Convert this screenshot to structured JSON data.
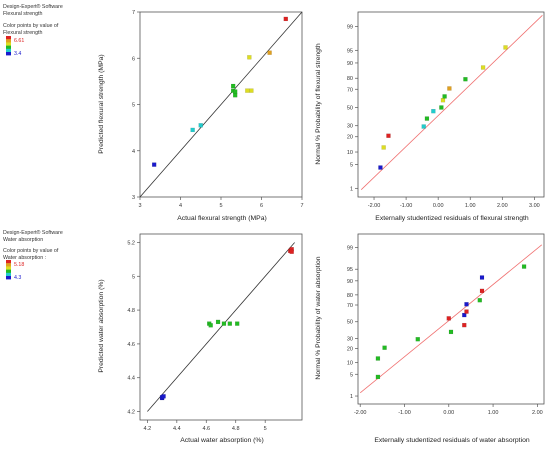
{
  "legends": [
    {
      "software": "Design-Expert® Software",
      "response": "Flexural strength",
      "color_by_line1": "Color points by value of",
      "color_by_line2": "Flexural strength",
      "max_label": "6.61",
      "min_label": "3.4",
      "colors": [
        "#dd2222",
        "#e0a020",
        "#dddd22",
        "#22bb22",
        "#22cccc",
        "#1a1acc"
      ]
    },
    {
      "software": "Design-Expert® Software",
      "response": "Water absorption",
      "color_by_line1": "Color points by value of",
      "color_by_line2": "Water absorption :",
      "max_label": "5.18",
      "min_label": "4.3",
      "colors": [
        "#dd2222",
        "#e0a020",
        "#dddd22",
        "#22bb22",
        "#22cccc",
        "#1a1acc"
      ]
    }
  ],
  "chart_data": [
    {
      "type": "scatter",
      "title": "",
      "xlabel": "Actual flexural strength (MPa)",
      "ylabel": "Predicted flexural strength (MPa)",
      "xlim": [
        3,
        7
      ],
      "ylim": [
        3,
        7
      ],
      "xticks": [
        3,
        4,
        5,
        6,
        7
      ],
      "yticks": [
        3,
        4,
        5,
        6,
        7
      ],
      "xtick_labels": [
        "3",
        "4",
        "5",
        "6",
        "7"
      ],
      "ytick_labels": [
        "3",
        "4",
        "5",
        "6",
        "7"
      ],
      "reference_line": {
        "from": [
          3,
          3
        ],
        "to": [
          7,
          7
        ],
        "color": "#333333"
      },
      "grid": false,
      "points": [
        {
          "x": 3.35,
          "y": 3.7,
          "color": "#1a1acc"
        },
        {
          "x": 4.3,
          "y": 4.45,
          "color": "#22cccc"
        },
        {
          "x": 4.5,
          "y": 4.55,
          "color": "#22cccc"
        },
        {
          "x": 5.3,
          "y": 5.4,
          "color": "#22bb22"
        },
        {
          "x": 5.3,
          "y": 5.3,
          "color": "#22bb22"
        },
        {
          "x": 5.35,
          "y": 5.2,
          "color": "#22bb22"
        },
        {
          "x": 5.35,
          "y": 5.28,
          "color": "#22bb22"
        },
        {
          "x": 5.65,
          "y": 5.3,
          "color": "#dddd22"
        },
        {
          "x": 5.75,
          "y": 5.3,
          "color": "#dddd22"
        },
        {
          "x": 5.7,
          "y": 6.02,
          "color": "#dddd22"
        },
        {
          "x": 6.2,
          "y": 6.12,
          "color": "#e0a020"
        },
        {
          "x": 6.6,
          "y": 6.85,
          "color": "#dd2222"
        }
      ]
    },
    {
      "type": "scatter",
      "title": "",
      "xlabel": "Externally studentized residuals of flexural strength",
      "ylabel": "Normal % Probability of flexural strength",
      "xlim": [
        -2.5,
        3.3
      ],
      "ylim_probability": [
        0.5,
        99.7
      ],
      "xticks": [
        -2,
        -1,
        0,
        1,
        2,
        3
      ],
      "xtick_labels": [
        "-2.00",
        "-1.00",
        "0.00",
        "1.00",
        "2.00",
        "3.00"
      ],
      "yticks": [
        1,
        5,
        10,
        20,
        30,
        50,
        70,
        80,
        90,
        95,
        99
      ],
      "ytick_labels": [
        "1",
        "5",
        "10",
        "20",
        "30",
        "50",
        "70",
        "80",
        "90",
        "95",
        "99"
      ],
      "reference_line": {
        "from": [
          -2.4,
          0.9
        ],
        "to": [
          3.25,
          99.6
        ],
        "color": "#f07070"
      },
      "grid": false,
      "points": [
        {
          "x": -1.8,
          "y": 4.2,
          "color": "#1a1acc"
        },
        {
          "x": -1.7,
          "y": 12.5,
          "color": "#dddd22"
        },
        {
          "x": -1.55,
          "y": 20.8,
          "color": "#dd2222"
        },
        {
          "x": -0.45,
          "y": 29.2,
          "color": "#22cccc"
        },
        {
          "x": -0.35,
          "y": 37.5,
          "color": "#22bb22"
        },
        {
          "x": -0.15,
          "y": 45.8,
          "color": "#22cccc"
        },
        {
          "x": 0.1,
          "y": 50.0,
          "color": "#22bb22"
        },
        {
          "x": 0.15,
          "y": 58.3,
          "color": "#dddd22"
        },
        {
          "x": 0.2,
          "y": 62.5,
          "color": "#22bb22"
        },
        {
          "x": 0.35,
          "y": 70.8,
          "color": "#e0a020"
        },
        {
          "x": 0.85,
          "y": 79.2,
          "color": "#22bb22"
        },
        {
          "x": 1.4,
          "y": 87.5,
          "color": "#dddd22"
        },
        {
          "x": 2.1,
          "y": 95.8,
          "color": "#dddd22"
        }
      ]
    },
    {
      "type": "scatter",
      "title": "",
      "xlabel": "Actual water absorption (%)",
      "ylabel": "Predicted water absorption (%)",
      "xlim": [
        4.15,
        5.25
      ],
      "ylim": [
        4.15,
        5.25
      ],
      "xticks": [
        4.2,
        4.4,
        4.6,
        4.8,
        5
      ],
      "yticks": [
        4.2,
        4.4,
        4.6,
        4.8,
        5,
        5.2
      ],
      "xtick_labels": [
        "4.2",
        "4.4",
        "4.6",
        "4.8",
        "5"
      ],
      "ytick_labels": [
        "4.2",
        "4.4",
        "4.6",
        "4.8",
        "5",
        "5.2"
      ],
      "reference_line": {
        "from": [
          4.2,
          4.2
        ],
        "to": [
          5.2,
          5.2
        ],
        "color": "#333333"
      },
      "grid": false,
      "points": [
        {
          "x": 4.3,
          "y": 4.28,
          "color": "#1a1acc"
        },
        {
          "x": 4.3,
          "y": 4.285,
          "color": "#1a1acc"
        },
        {
          "x": 4.31,
          "y": 4.29,
          "color": "#1a1acc"
        },
        {
          "x": 4.62,
          "y": 4.72,
          "color": "#22bb22"
        },
        {
          "x": 4.63,
          "y": 4.71,
          "color": "#22bb22"
        },
        {
          "x": 4.68,
          "y": 4.73,
          "color": "#22bb22"
        },
        {
          "x": 4.72,
          "y": 4.72,
          "color": "#22bb22"
        },
        {
          "x": 4.76,
          "y": 4.72,
          "color": "#22bb22"
        },
        {
          "x": 4.81,
          "y": 4.72,
          "color": "#22bb22"
        },
        {
          "x": 5.17,
          "y": 5.15,
          "color": "#dd2222"
        },
        {
          "x": 5.18,
          "y": 5.16,
          "color": "#dd2222"
        },
        {
          "x": 5.18,
          "y": 5.145,
          "color": "#dd2222"
        }
      ]
    },
    {
      "type": "scatter",
      "title": "",
      "xlabel": "Externally studentized residuals of water absorption",
      "ylabel": "Normal % Probability of water absorption",
      "xlim": [
        -2.05,
        2.15
      ],
      "ylim_probability": [
        0.5,
        99.7
      ],
      "xticks": [
        -2,
        -1,
        0,
        1,
        2
      ],
      "xtick_labels": [
        "-2.00",
        "-1.00",
        "0.00",
        "1.00",
        "2.00"
      ],
      "yticks": [
        1,
        5,
        10,
        20,
        30,
        50,
        70,
        80,
        90,
        95,
        99
      ],
      "ytick_labels": [
        "1",
        "5",
        "10",
        "20",
        "30",
        "50",
        "70",
        "80",
        "90",
        "95",
        "99"
      ],
      "reference_line": {
        "from": [
          -2.0,
          1.3
        ],
        "to": [
          2.1,
          99.2
        ],
        "color": "#f07070"
      },
      "grid": false,
      "points": [
        {
          "x": -1.6,
          "y": 4.2,
          "color": "#22bb22"
        },
        {
          "x": -1.6,
          "y": 12.5,
          "color": "#22bb22"
        },
        {
          "x": -1.45,
          "y": 20.8,
          "color": "#22bb22"
        },
        {
          "x": -0.7,
          "y": 29.2,
          "color": "#22bb22"
        },
        {
          "x": 0.05,
          "y": 37.5,
          "color": "#22bb22"
        },
        {
          "x": 0.35,
          "y": 45.8,
          "color": "#dd2222"
        },
        {
          "x": 0.0,
          "y": 54.2,
          "color": "#dd2222"
        },
        {
          "x": 0.35,
          "y": 58.3,
          "color": "#1a1acc"
        },
        {
          "x": 0.4,
          "y": 62.5,
          "color": "#dd2222"
        },
        {
          "x": 0.4,
          "y": 70.8,
          "color": "#1a1acc"
        },
        {
          "x": 0.7,
          "y": 75.0,
          "color": "#22bb22"
        },
        {
          "x": 0.75,
          "y": 83.3,
          "color": "#dd2222"
        },
        {
          "x": 0.75,
          "y": 91.7,
          "color": "#1a1acc"
        },
        {
          "x": 1.7,
          "y": 95.8,
          "color": "#22bb22"
        }
      ]
    }
  ]
}
